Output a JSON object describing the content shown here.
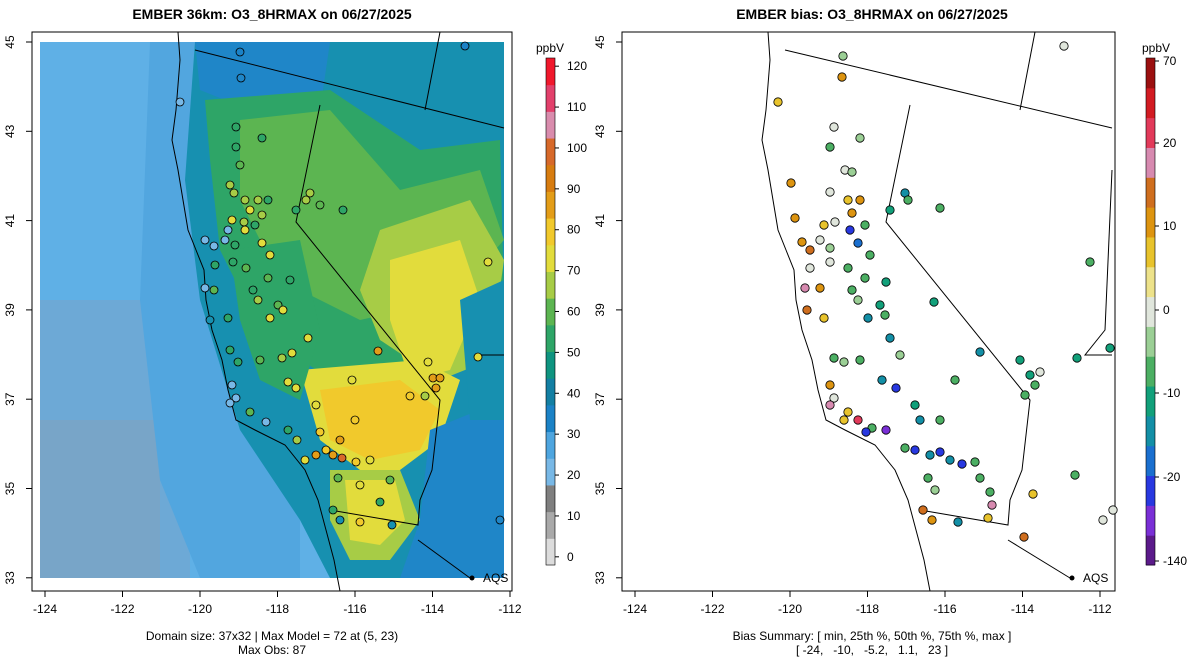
{
  "left": {
    "title": "EMBER 36km: O3_8HRMAX on 06/27/2025",
    "footer_line1": "Domain size: 37x32 | Max Model = 72 at (5, 23)",
    "footer_line2": "Max Obs: 87",
    "colorbar": {
      "unit": "ppbV",
      "ticks": [
        "120",
        "110",
        "100",
        "90",
        "80",
        "70",
        "60",
        "50",
        "40",
        "30",
        "20",
        "10",
        "0"
      ],
      "tick_values": [
        120,
        110,
        100,
        90,
        80,
        70,
        60,
        50,
        40,
        30,
        20,
        10,
        0
      ],
      "range": [
        -2,
        122
      ],
      "colors": [
        "#dcdcdc",
        "#a9a9a9",
        "#7f7f7f",
        "#78b8e6",
        "#4ea5df",
        "#1b82c6",
        "#137fa3",
        "#0f9480",
        "#2ea567",
        "#5cb551",
        "#a7cc46",
        "#e2dc3c",
        "#f1c92c",
        "#e39d18",
        "#d77c10",
        "#d7692a",
        "#d98cad",
        "#e2406b",
        "#f0182c"
      ]
    },
    "legend_point_label": "AQS",
    "axis_x_ticks": [
      "-124",
      "-122",
      "-120",
      "-118",
      "-116",
      "-114",
      "-112"
    ],
    "axis_y_ticks": [
      "45",
      "43",
      "41",
      "39",
      "37",
      "35",
      "33"
    ]
  },
  "right": {
    "title": "EMBER bias: O3_8HRMAX on 06/27/2025",
    "footer_line1": "Bias Summary: [ min, 25th %, 50th %, 75th %, max ]",
    "footer_line2": "[ -24,   -10,   -5.2,   1.1,   23 ]",
    "colorbar": {
      "unit": "ppbV",
      "ticks": [
        "70",
        "20",
        "10",
        "0",
        "-10",
        "-20",
        "-140"
      ],
      "tick_values": [
        70,
        20,
        10,
        0,
        -10,
        -20,
        -140
      ],
      "colors": [
        "#5b1a8a",
        "#7a2fd6",
        "#2838e0",
        "#1a6fcf",
        "#138fa6",
        "#12a07a",
        "#4caf63",
        "#9bcf95",
        "#e0e6dc",
        "#ede28a",
        "#e8c32c",
        "#dd9410",
        "#cf6e1e",
        "#d78ab0",
        "#e23a5a",
        "#d21b22",
        "#9b1010"
      ]
    },
    "legend_point_label": "AQS",
    "axis_x_ticks": [
      "-124",
      "-122",
      "-120",
      "-118",
      "-116",
      "-114",
      "-112"
    ],
    "axis_y_ticks": [
      "45",
      "43",
      "41",
      "39",
      "37",
      "35",
      "33"
    ]
  }
}
